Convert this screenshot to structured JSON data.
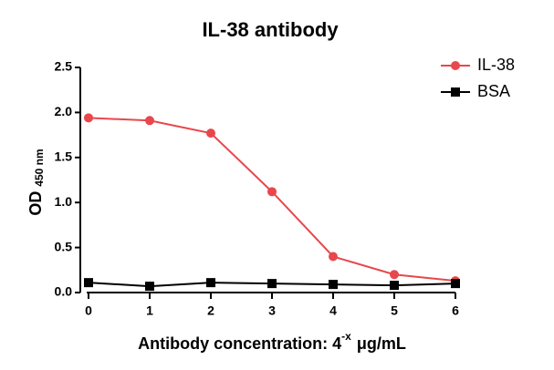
{
  "chart_data": {
    "type": "line",
    "title": "IL-38 antibody",
    "ylabel": "OD",
    "ylabel_sub": "450 nm",
    "xlabel": "Antibody concentration: 4",
    "xlabel_sup": "-x",
    "xlabel_unit": "μg/mL",
    "x": [
      0,
      1,
      2,
      3,
      4,
      5,
      6
    ],
    "series": [
      {
        "name": "IL-38",
        "color": "#e8474c",
        "marker": "circle",
        "values": [
          1.94,
          1.91,
          1.77,
          1.12,
          0.4,
          0.2,
          0.13
        ]
      },
      {
        "name": "BSA",
        "color": "#000000",
        "marker": "square",
        "values": [
          0.11,
          0.07,
          0.11,
          0.1,
          0.09,
          0.08,
          0.1
        ]
      }
    ],
    "xlim": [
      0,
      6
    ],
    "xticks": [
      0,
      1,
      2,
      3,
      4,
      5,
      6
    ],
    "ylim": [
      0,
      2.5
    ],
    "yticks": [
      {
        "value": 0,
        "label": "0.0"
      },
      {
        "value": 0.5,
        "label": "0.5"
      },
      {
        "value": 1,
        "label": "1.0"
      },
      {
        "value": 1.5,
        "label": "1.5"
      },
      {
        "value": 2,
        "label": "2.0"
      },
      {
        "value": 2.5,
        "label": "2.5"
      }
    ],
    "grid": false,
    "legend": "upper right"
  }
}
